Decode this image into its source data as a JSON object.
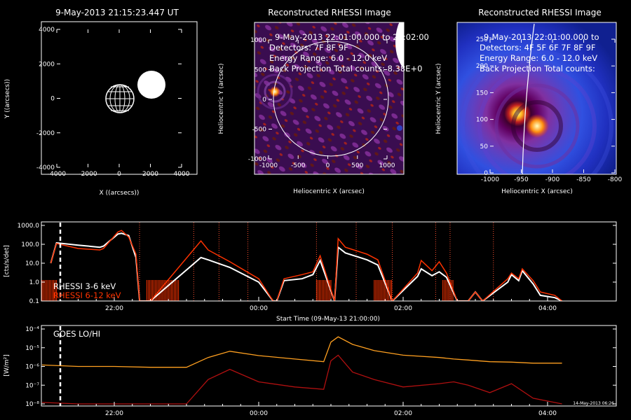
{
  "panels": {
    "locator": {
      "title": "9-May-2013 21:15:23.447 UT",
      "xlabel": "X ((arcsecs))",
      "ylabel": "Y ((arcsecs))",
      "xticks": [
        "-4000",
        "-2000",
        "0",
        "2000",
        "4000"
      ],
      "yticks": [
        "4000",
        "2000",
        "0",
        "-2000",
        "-4000"
      ]
    },
    "image1": {
      "title": "Reconstructed RHESSI Image",
      "overlay": [
        "9-May-2013 22:01:00.000 to 22:02:00",
        "Detectors: 7F 8F 9F",
        "Energy Range: 6.0 - 12.0 keV",
        "Back Projection     Total counts: 8.38E+0"
      ],
      "xlabel": "Heliocentric X (arcsec)",
      "ylabel": "Heliocentric Y (arcsec)",
      "xticks": [
        "-1000",
        "-500",
        "0",
        "500",
        "1000"
      ],
      "yticks": [
        "1000",
        "500",
        "0",
        "-500",
        "-1000"
      ]
    },
    "image2": {
      "title": "Reconstructed RHESSI Image",
      "overlay": [
        "9-May-2013 22:01:00.000 to",
        "Detectors: 4F 5F 6F 7F 8F 9F",
        "Energy Range: 6.0 - 12.0 keV",
        "Back Projection     Total counts:"
      ],
      "xlabel": "Heliocentric X (arcsec)",
      "ylabel": "Heliocentric Y (arcsec)",
      "xticks": [
        "-1000",
        "-950",
        "-900",
        "-850",
        "-800"
      ],
      "yticks": [
        "250",
        "200",
        "150",
        "100",
        "50",
        "0"
      ]
    },
    "lightcurve": {
      "ylabel": "[cts/s/det]",
      "yticks": [
        "1000.0",
        "100.0",
        "10.0",
        "1.0",
        "0.1"
      ],
      "xticks": [
        "22:00",
        "00:00",
        "02:00",
        "04:00"
      ],
      "xlabel": "Start Time (09-May-13 21:00:00)",
      "legend": [
        "RHESSI  3-6 keV",
        "RHESSI  6-12 keV"
      ]
    },
    "goes": {
      "label": "GOES LO/HI",
      "ylabel": "[W/m²]",
      "yticks": [
        "10⁻⁴",
        "10⁻⁵",
        "10⁻⁶",
        "10⁻⁷",
        "10⁻⁸"
      ],
      "xticks": [
        "22:00",
        "00:00",
        "02:00",
        "04:00"
      ],
      "stamp": "14-May-2013 06:26"
    }
  },
  "colors": {
    "low": "#ffffff",
    "high": "#ff3300",
    "goes_lo": "#ffa020",
    "goes_hi": "#b01010",
    "flare_line": "#ff5030"
  },
  "chart_data": [
    {
      "type": "scatter",
      "title": "9-May-2013 21:15:23.447 UT",
      "xlabel": "X ((arcsecs))",
      "ylabel": "Y ((arcsecs))",
      "xlim": [
        -5000,
        5000
      ],
      "ylim": [
        -5000,
        5000
      ],
      "series": [
        {
          "name": "",
          "x": [
            0
          ],
          "y": [
            0
          ]
        },
        {
          "name": "",
          "x": [
            2100
          ],
          "y": [
            1000
          ]
        }
      ]
    },
    {
      "type": "heatmap",
      "title": "Reconstructed RHESSI Image",
      "xlabel": "Heliocentric X (arcsec)",
      "ylabel": "Heliocentric Y (arcsec)",
      "xlim": [
        -1250,
        1250
      ],
      "ylim": [
        -1250,
        1250
      ],
      "peak": {
        "x": -930,
        "y": 100
      }
    },
    {
      "type": "heatmap",
      "title": "Reconstructed RHESSI Image",
      "xlabel": "Heliocentric X (arcsec)",
      "ylabel": "Heliocentric Y (arcsec)",
      "xlim": [
        -1045,
        -795
      ],
      "ylim": [
        -5,
        255
      ],
      "peak": {
        "x": -928,
        "y": 100
      }
    },
    {
      "type": "line",
      "xlabel": "Start Time (09-May-13 21:00:00)",
      "ylabel": "[cts/s/det]",
      "yscale": "log",
      "ylim": [
        0.1,
        1000
      ],
      "xlim_hours": [
        21.0,
        28.25
      ],
      "x": [
        21.12,
        21.2,
        21.5,
        21.8,
        21.85,
        22.05,
        22.1,
        22.2,
        22.3,
        22.35,
        22.45,
        22.5,
        23.2,
        23.3,
        23.6,
        24.0,
        24.2,
        24.25,
        24.35,
        24.6,
        24.75,
        24.85,
        25.05,
        25.1,
        25.2,
        25.5,
        25.65,
        25.85,
        26.2,
        26.25,
        26.4,
        26.5,
        26.6,
        26.75,
        26.8,
        26.9,
        27.0,
        27.1,
        27.45,
        27.5,
        27.6,
        27.65,
        27.8,
        27.9,
        28.1,
        28.2
      ],
      "series": [
        {
          "name": "RHESSI  3-6 keV",
          "values": [
            10,
            120,
            90,
            70,
            80,
            350,
            380,
            290,
            20,
            0.1,
            0.1,
            0.1,
            20,
            15,
            6,
            1.0,
            0.1,
            0.1,
            1.2,
            1.5,
            2.5,
            14,
            0.1,
            70,
            35,
            15,
            8,
            0.1,
            2.0,
            5,
            2.2,
            3.5,
            1.8,
            0.1,
            0.1,
            0.1,
            0.3,
            0.1,
            1.0,
            2.5,
            1.2,
            4,
            0.8,
            0.2,
            0.15,
            0.1
          ]
        },
        {
          "name": "RHESSI  6-12 keV",
          "values": [
            10,
            110,
            60,
            50,
            60,
            450,
            540,
            240,
            30,
            0.1,
            0.1,
            0.1,
            150,
            50,
            12,
            1.5,
            0.1,
            0.1,
            1.5,
            2.5,
            3.5,
            25,
            0.1,
            200,
            70,
            30,
            15,
            0.1,
            3,
            14,
            4,
            12,
            3,
            0.1,
            0.1,
            0.1,
            0.3,
            0.1,
            1.5,
            3,
            1.5,
            5,
            1.2,
            0.3,
            0.2,
            0.1
          ]
        }
      ]
    },
    {
      "type": "line",
      "ylabel": "[W/m²]",
      "yscale": "log",
      "ylim": [
        1e-08,
        0.0001
      ],
      "xlim_hours": [
        21.0,
        28.25
      ],
      "x": [
        21.0,
        21.5,
        22.0,
        22.5,
        23.0,
        23.3,
        23.6,
        24.0,
        24.5,
        24.9,
        25.0,
        25.1,
        25.3,
        25.6,
        26.0,
        26.5,
        26.7,
        26.9,
        27.2,
        27.5,
        27.8,
        28.2
      ],
      "series": [
        {
          "name": "",
          "values": [
            1.2e-06,
            1e-06,
            1e-06,
            9e-07,
            9e-07,
            3e-06,
            6.5e-06,
            3.8e-06,
            2.5e-06,
            1.8e-06,
            2e-05,
            3.8e-05,
            1.5e-05,
            7e-06,
            4e-06,
            3e-06,
            2.5e-06,
            2.2e-06,
            1.8e-06,
            1.7e-06,
            1.5e-06,
            1.5e-06
          ]
        },
        {
          "name": "",
          "values": [
            1.2e-08,
            1e-08,
            1e-08,
            1e-08,
            1e-08,
            2e-07,
            7e-07,
            1.5e-07,
            8e-08,
            6e-08,
            2e-06,
            4e-06,
            5e-07,
            2e-07,
            8e-08,
            1.2e-07,
            1.5e-07,
            1e-07,
            4e-08,
            1.2e-07,
            2e-08,
            1e-08
          ]
        }
      ]
    }
  ]
}
